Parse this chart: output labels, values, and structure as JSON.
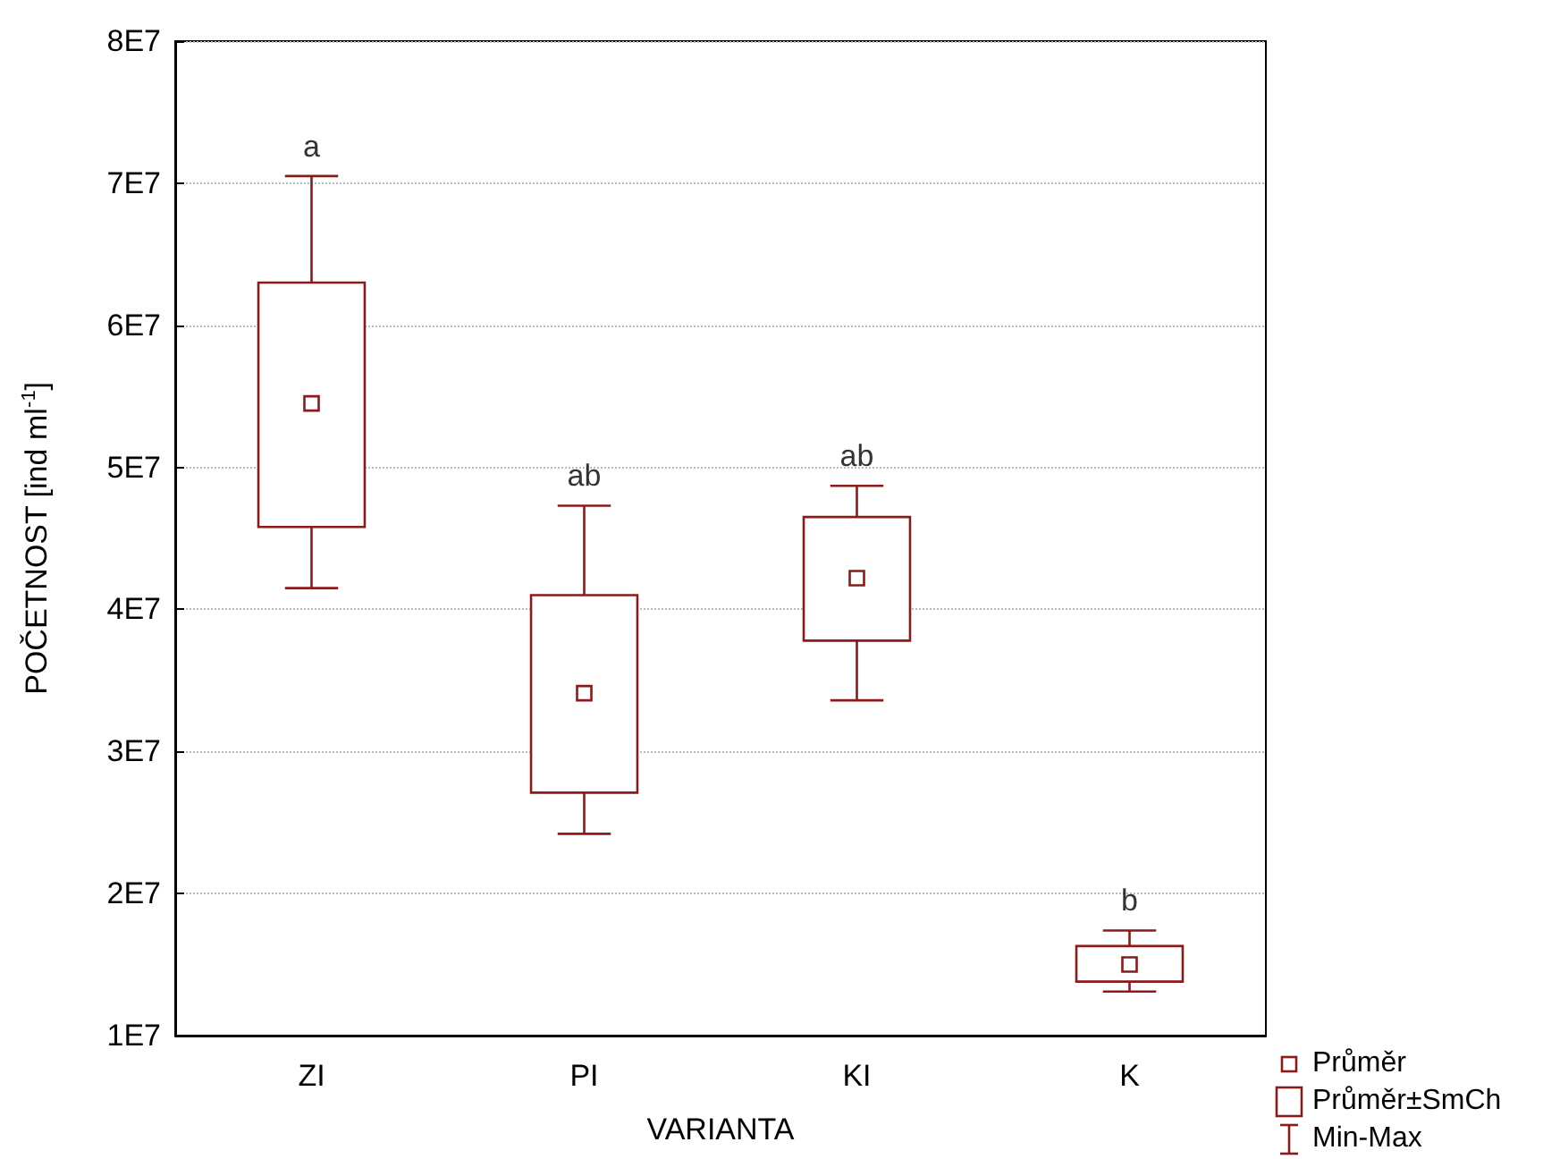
{
  "chart_data": {
    "type": "box",
    "xlabel": "VARIANTA",
    "ylabel": "POČETNOST [ind ml$^{-1}$]",
    "categories": [
      "ZI",
      "PI",
      "KI",
      "K"
    ],
    "color": "#8b1a1a",
    "boxes": [
      {
        "low": 41500000,
        "q1": 45800000,
        "q3": 63000000,
        "high": 70500000,
        "mean": 54500000
      },
      {
        "low": 24200000,
        "q1": 27100000,
        "q3": 41000000,
        "high": 47300000,
        "mean": 34100000
      },
      {
        "low": 33600000,
        "q1": 37800000,
        "q3": 46500000,
        "high": 48700000,
        "mean": 42200000
      },
      {
        "low": 13100000,
        "q1": 13800000,
        "q3": 16300000,
        "high": 17400000,
        "mean": 15000000
      }
    ],
    "ylim": [
      10000000,
      80000000
    ],
    "yticks": [
      {
        "value": 10000000,
        "label": "1E7"
      },
      {
        "value": 20000000,
        "label": "2E7"
      },
      {
        "value": 30000000,
        "label": "3E7"
      },
      {
        "value": 40000000,
        "label": "4E7"
      },
      {
        "value": 50000000,
        "label": "5E7"
      },
      {
        "value": 60000000,
        "label": "6E7"
      },
      {
        "value": 70000000,
        "label": "7E7"
      },
      {
        "value": 80000000,
        "label": "8E7"
      }
    ],
    "grid": "y",
    "annotations": [
      "a",
      "ab",
      "ab",
      "b",
      "Průměr",
      "Průměr±SmCh",
      "Min-Max"
    ]
  }
}
